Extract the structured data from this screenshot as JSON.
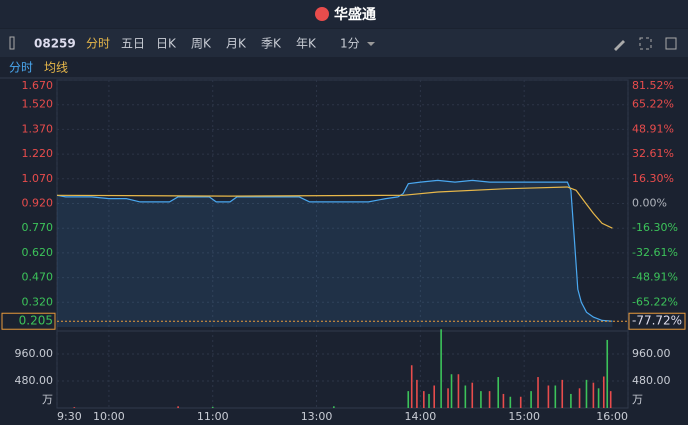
{
  "header": {
    "title": "华盛通"
  },
  "toolbar": {
    "code": "08259",
    "tabs": [
      "分时",
      "五日",
      "日K",
      "周K",
      "月K",
      "季K",
      "年K"
    ],
    "period": "1分"
  },
  "subtabs": [
    "分时",
    "均线"
  ],
  "chart_data": {
    "type": "line",
    "xlim": [
      0,
      330
    ],
    "xticks": [
      {
        "value": 0,
        "label": "9:30"
      },
      {
        "value": 30,
        "label": "10:00"
      },
      {
        "value": 90,
        "label": "11:00"
      },
      {
        "value": 150,
        "label": "13:00"
      },
      {
        "value": 210,
        "label": "14:00"
      },
      {
        "value": 270,
        "label": "15:00"
      },
      {
        "value": 330,
        "label": "16:00"
      }
    ],
    "ylim": [
      0.17,
      1.67
    ],
    "yticks": [
      {
        "value": 1.67,
        "label": "1.670"
      },
      {
        "value": 1.52,
        "label": "1.520"
      },
      {
        "value": 1.37,
        "label": "1.370"
      },
      {
        "value": 1.22,
        "label": "1.220"
      },
      {
        "value": 1.07,
        "label": "1.070"
      },
      {
        "value": 0.92,
        "label": "0.920"
      },
      {
        "value": 0.77,
        "label": "0.770"
      },
      {
        "value": 0.62,
        "label": "0.620"
      },
      {
        "value": 0.47,
        "label": "0.470"
      },
      {
        "value": 0.32,
        "label": "0.320"
      }
    ],
    "y2lim": [
      -81.52,
      81.52
    ],
    "y2ticks": [
      {
        "value": 81.52,
        "label": "81.52%"
      },
      {
        "value": 65.22,
        "label": "65.22%"
      },
      {
        "value": 48.91,
        "label": "48.91%"
      },
      {
        "value": 32.61,
        "label": "32.61%"
      },
      {
        "value": 16.3,
        "label": "16.30%"
      },
      {
        "value": 0,
        "label": "0.00%"
      },
      {
        "value": -16.3,
        "label": "-16.30%"
      },
      {
        "value": -32.61,
        "label": "-32.61%"
      },
      {
        "value": -48.91,
        "label": "-48.91%"
      },
      {
        "value": -65.22,
        "label": "-65.22%"
      }
    ],
    "last_price": 0.205,
    "last_change": {
      "value": -77.72,
      "label": "-77.72%"
    },
    "series": [
      {
        "color": "#4aa8f0",
        "x": [
          0,
          5,
          10,
          20,
          30,
          40,
          48,
          55,
          65,
          70,
          80,
          88,
          92,
          100,
          104,
          110,
          120,
          130,
          140,
          146,
          155,
          165,
          172,
          180,
          190,
          197,
          200,
          203,
          210,
          220,
          230,
          240,
          250,
          260,
          270,
          280,
          290,
          295,
          297,
          299,
          301,
          303,
          306,
          310,
          315,
          321
        ],
        "values": [
          0.97,
          0.96,
          0.96,
          0.96,
          0.95,
          0.95,
          0.93,
          0.93,
          0.93,
          0.96,
          0.96,
          0.96,
          0.93,
          0.93,
          0.96,
          0.96,
          0.96,
          0.96,
          0.96,
          0.93,
          0.93,
          0.93,
          0.93,
          0.93,
          0.95,
          0.96,
          0.98,
          1.04,
          1.05,
          1.06,
          1.05,
          1.06,
          1.05,
          1.05,
          1.05,
          1.05,
          1.05,
          1.05,
          1.0,
          0.7,
          0.4,
          0.32,
          0.26,
          0.23,
          0.21,
          0.205
        ]
      },
      {
        "color": "#e8b84a",
        "x": [
          0,
          100,
          200,
          220,
          260,
          295,
          300,
          305,
          310,
          315,
          321
        ],
        "values": [
          0.97,
          0.965,
          0.97,
          0.99,
          1.01,
          1.02,
          1.0,
          0.93,
          0.86,
          0.8,
          0.77
        ]
      }
    ],
    "volume": {
      "ylim": [
        0,
        1440
      ],
      "yticks": [
        {
          "value": 960,
          "label": "960.00"
        },
        {
          "value": 480,
          "label": "480.00"
        }
      ],
      "unit": "万",
      "series": [
        {
          "color": "#e84c4c",
          "x": [
            10,
            70,
            205,
            208,
            212,
            218,
            226,
            232,
            240,
            250,
            258,
            268,
            278,
            284,
            292,
            302,
            310,
            316,
            320
          ],
          "values": [
            15,
            30,
            760,
            500,
            300,
            400,
            350,
            600,
            450,
            300,
            250,
            200,
            550,
            400,
            500,
            350,
            450,
            560,
            300
          ]
        },
        {
          "color": "#3cc35a",
          "x": [
            90,
            160,
            203,
            215,
            222,
            228,
            236,
            245,
            255,
            262,
            274,
            288,
            297,
            306,
            313,
            318
          ],
          "values": [
            20,
            30,
            300,
            250,
            1400,
            600,
            400,
            300,
            550,
            200,
            300,
            400,
            250,
            500,
            350,
            1210
          ]
        }
      ]
    }
  }
}
